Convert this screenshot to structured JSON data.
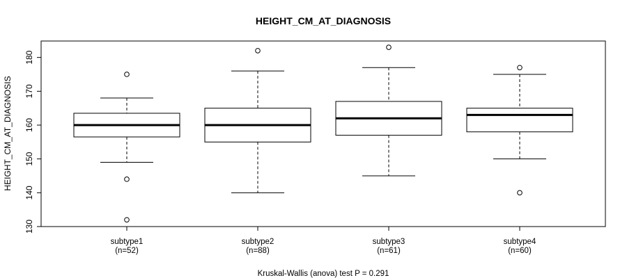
{
  "chart_data": {
    "type": "boxplot",
    "title": "HEIGHT_CM_AT_DIAGNOSIS",
    "ylabel": "HEIGHT_CM_AT_DIAGNOSIS",
    "xlabel": "",
    "ylim": [
      130,
      185
    ],
    "yticks": [
      130,
      140,
      150,
      160,
      170,
      180
    ],
    "footnote": "Kruskal-Wallis (anova) test P = 0.291",
    "groups": [
      {
        "name": "subtype1",
        "n_label": "(n=52)",
        "whisker_low": 149,
        "q1": 156.5,
        "median": 160,
        "q3": 163.5,
        "whisker_high": 168,
        "outliers": [
          175,
          144,
          132
        ]
      },
      {
        "name": "subtype2",
        "n_label": "(n=88)",
        "whisker_low": 140,
        "q1": 155,
        "median": 160,
        "q3": 165,
        "whisker_high": 176,
        "outliers": [
          182
        ]
      },
      {
        "name": "subtype3",
        "n_label": "(n=61)",
        "whisker_low": 145,
        "q1": 157,
        "median": 162,
        "q3": 167,
        "whisker_high": 177,
        "outliers": [
          183
        ]
      },
      {
        "name": "subtype4",
        "n_label": "(n=60)",
        "whisker_low": 150,
        "q1": 158,
        "median": 163,
        "q3": 165,
        "whisker_high": 175,
        "outliers": [
          177,
          140
        ]
      }
    ]
  }
}
